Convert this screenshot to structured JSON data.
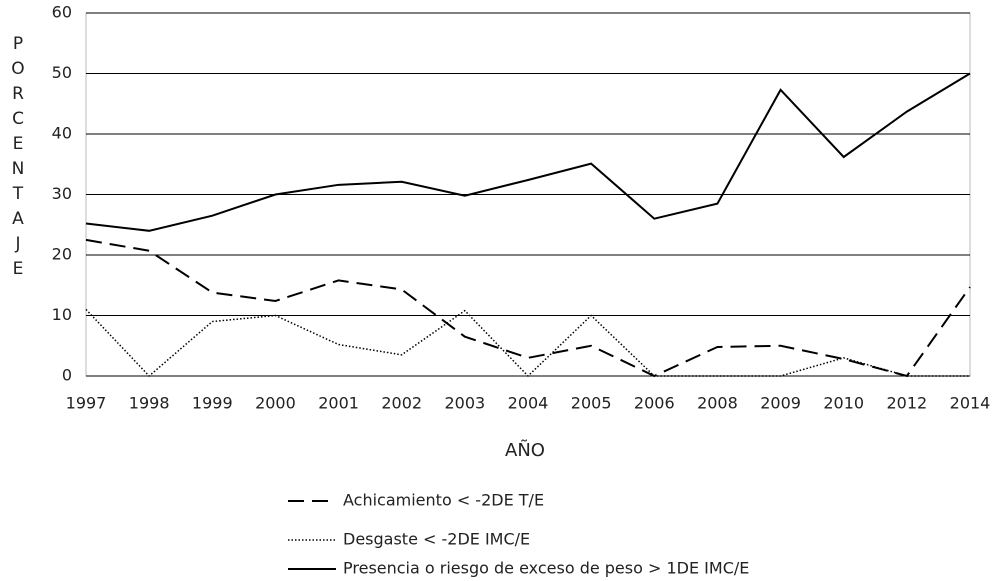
{
  "chart_data": {
    "type": "line",
    "y_label": "PORCENTAJE",
    "x_label": "AÑO",
    "categories": [
      "1997",
      "1998",
      "1999",
      "2000",
      "2001",
      "2002",
      "2003",
      "2004",
      "2005",
      "2006",
      "2008",
      "2009",
      "2010",
      "2012",
      "2014"
    ],
    "series": [
      {
        "name": "Achicamiento < -2DE T/E",
        "color": "#000000",
        "dash": "dashed",
        "values": [
          22.5,
          20.7,
          13.8,
          12.4,
          15.8,
          14.3,
          6.5,
          3,
          5,
          0,
          4.8,
          5,
          2.8,
          0,
          14.7
        ]
      },
      {
        "name": "Desgaste < -2DE IMC/E",
        "color": "#000000",
        "dash": "dotted",
        "values": [
          11,
          0,
          9,
          10,
          5.2,
          3.5,
          10.8,
          0,
          10,
          0,
          0,
          0,
          3,
          0,
          0
        ]
      },
      {
        "name": "Presencia o riesgo de exceso de peso > 1DE IMC/E",
        "color": "#000000",
        "dash": "solid",
        "values": [
          25.2,
          24,
          26.5,
          30,
          31.6,
          32.1,
          29.8,
          32.4,
          35.1,
          26,
          28.5,
          47.3,
          36.2,
          43.7,
          50
        ]
      }
    ],
    "ylim": [
      0,
      60
    ],
    "yticks": [
      0,
      10,
      20,
      30,
      40,
      50,
      60
    ],
    "grid": true
  }
}
